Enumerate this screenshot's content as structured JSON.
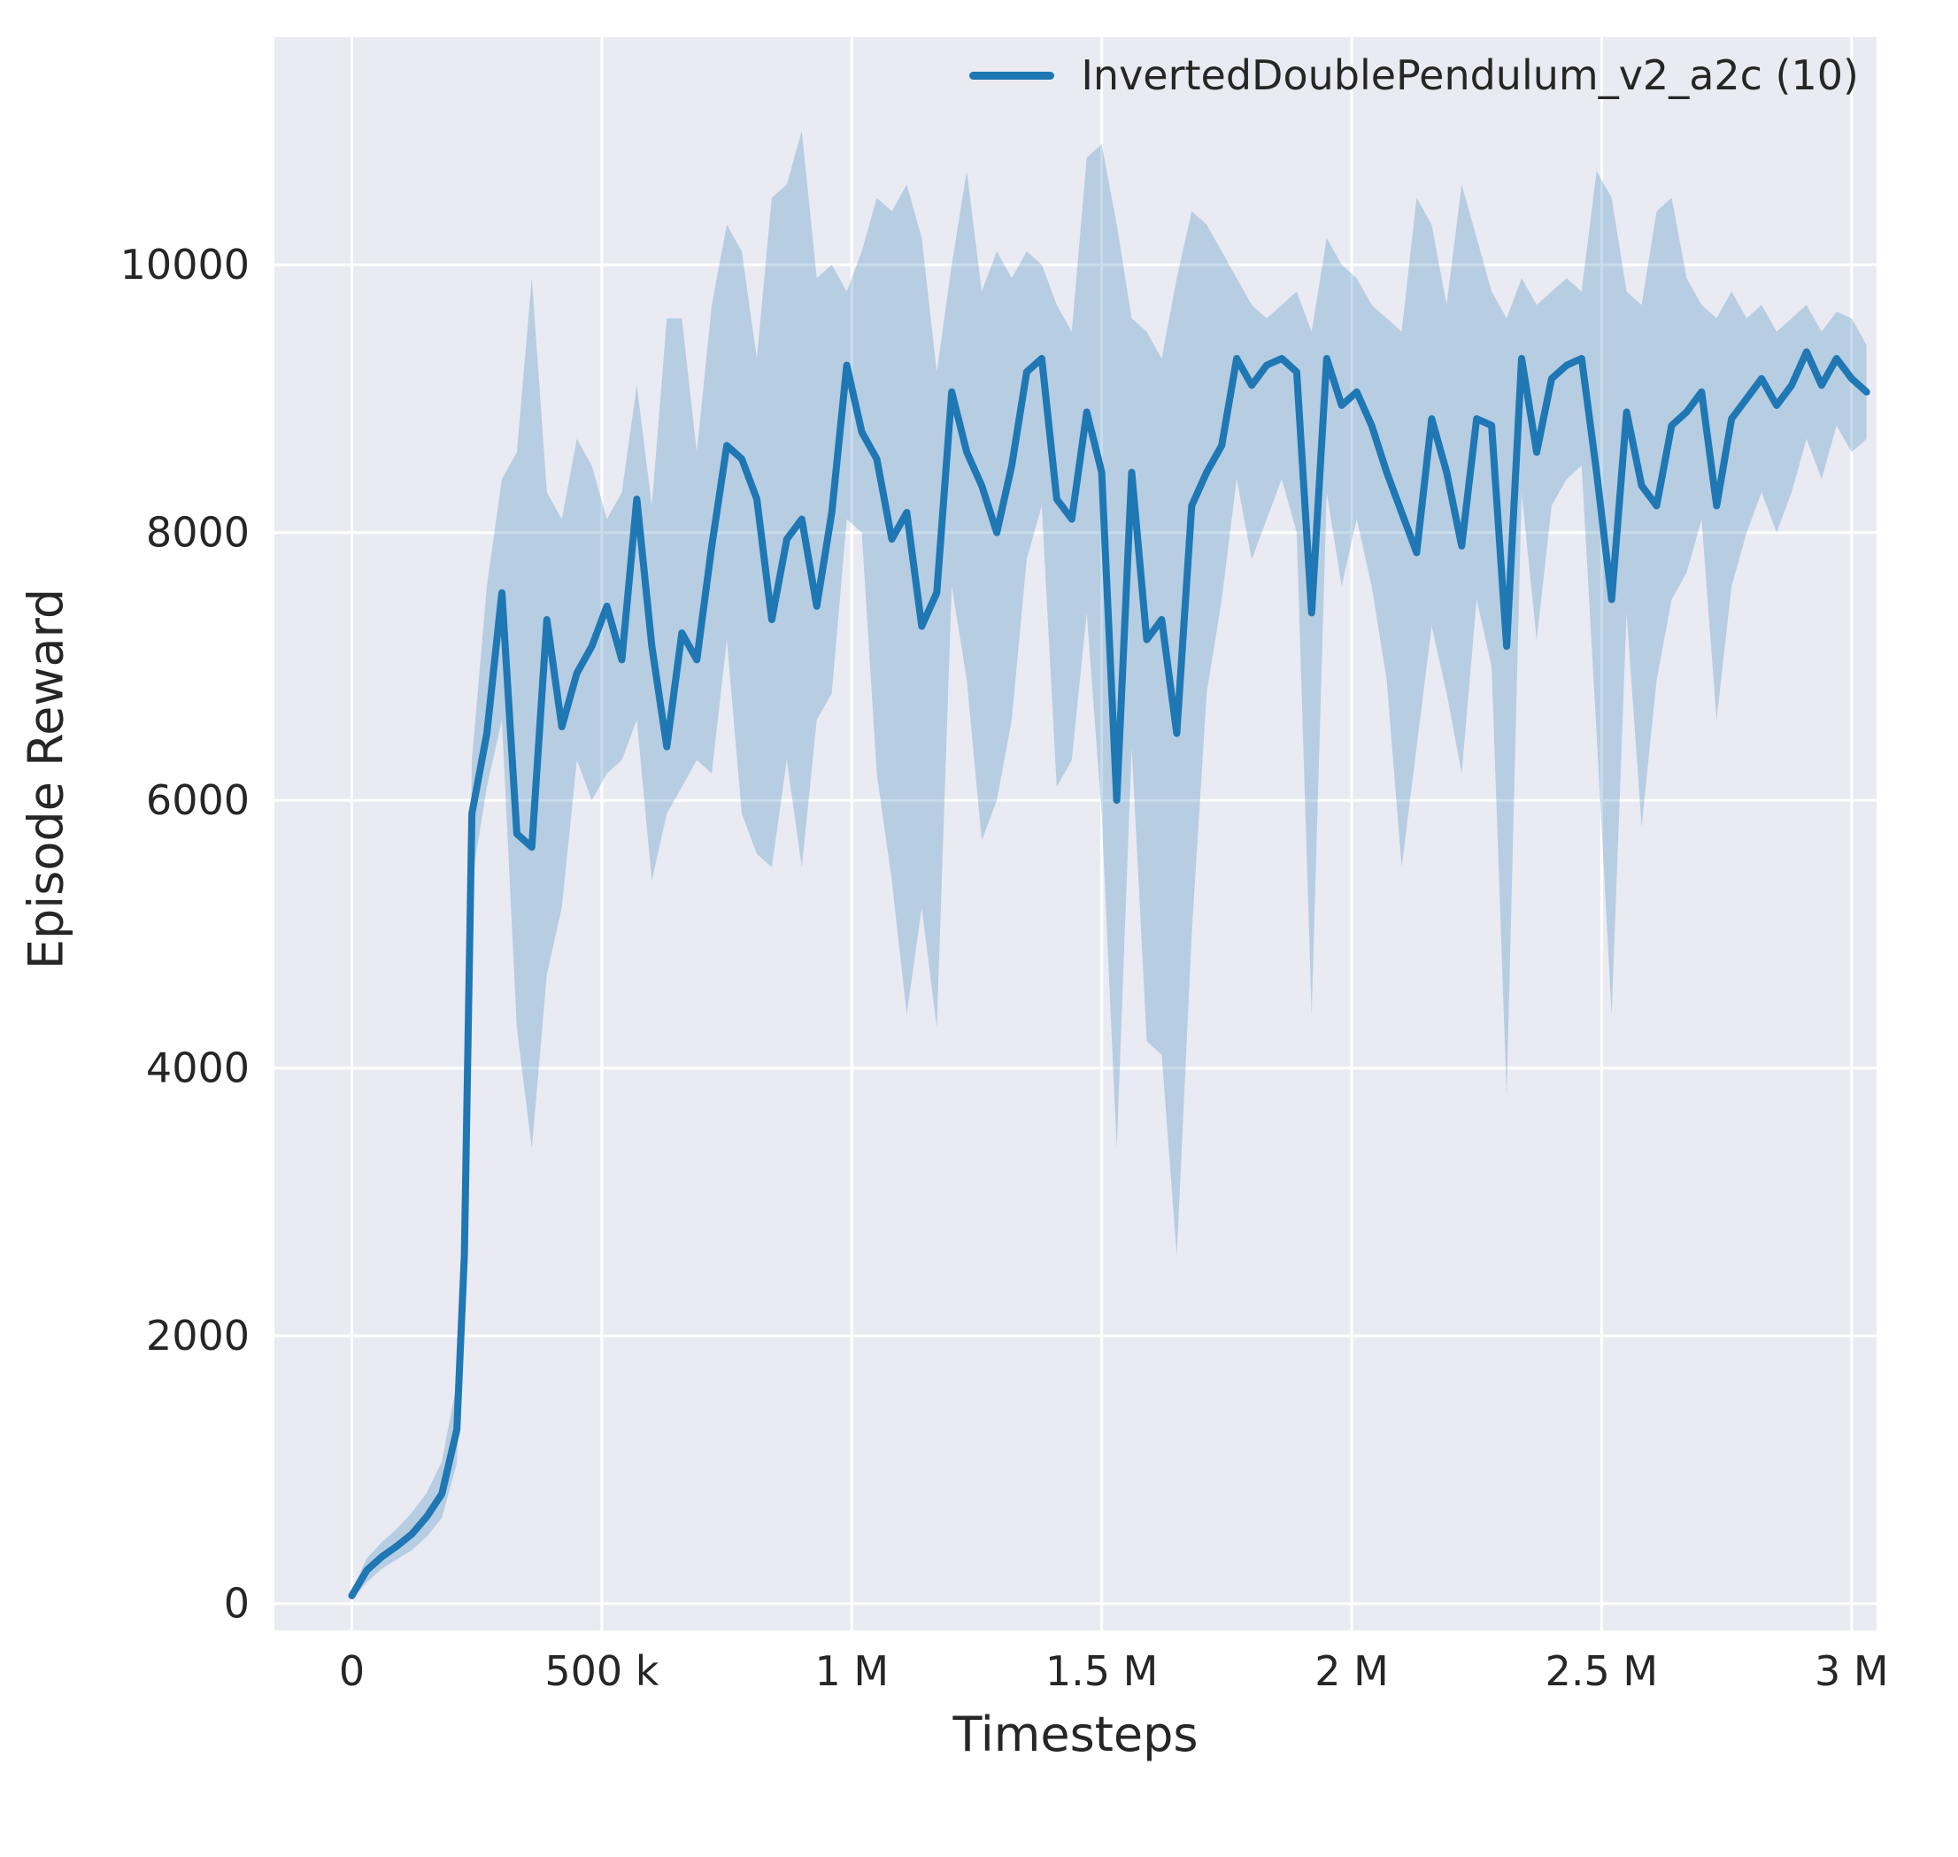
{
  "chart": {
    "legend_label": "InvertedDoublePendulum_v2_a2c (10)",
    "xlabel": "Timesteps",
    "ylabel": "Episode Reward"
  },
  "chart_data": {
    "type": "line",
    "title": "",
    "xlabel": "Timesteps",
    "ylabel": "Episode Reward",
    "legend_entries": [
      "InvertedDoublePendulum_v2_a2c (10)"
    ],
    "legend_position": "upper right",
    "grid": true,
    "style": {
      "background": "#eaeaf2",
      "grid_color": "#ffffff",
      "line_color": "#1f77b4",
      "band_color": "#1f77b4",
      "band_opacity": 0.25,
      "text_color": "#262626",
      "line_width": 8
    },
    "xlim": [
      -155000,
      3050000
    ],
    "ylim": [
      -200,
      11700
    ],
    "xticks": [
      {
        "v": 0,
        "label": "0"
      },
      {
        "v": 500000,
        "label": "500 k"
      },
      {
        "v": 1000000,
        "label": "1 M"
      },
      {
        "v": 1500000,
        "label": "1.5 M"
      },
      {
        "v": 2000000,
        "label": "2 M"
      },
      {
        "v": 2500000,
        "label": "2.5 M"
      },
      {
        "v": 3000000,
        "label": "3 M"
      }
    ],
    "yticks": [
      {
        "v": 0,
        "label": "0"
      },
      {
        "v": 2000,
        "label": "2000"
      },
      {
        "v": 4000,
        "label": "4000"
      },
      {
        "v": 6000,
        "label": "6000"
      },
      {
        "v": 8000,
        "label": "8000"
      },
      {
        "v": 10000,
        "label": "10000"
      }
    ],
    "series": [
      {
        "name": "InvertedDoublePendulum_v2_a2c (10)",
        "x": [
          0,
          30000,
          60000,
          90000,
          120000,
          150000,
          180000,
          210000,
          225000,
          240000,
          270000,
          300000,
          330000,
          360000,
          390000,
          420000,
          450000,
          480000,
          510000,
          540000,
          570000,
          600000,
          630000,
          660000,
          690000,
          720000,
          750000,
          780000,
          810000,
          840000,
          870000,
          900000,
          930000,
          960000,
          990000,
          1020000,
          1050000,
          1080000,
          1110000,
          1140000,
          1170000,
          1200000,
          1230000,
          1260000,
          1290000,
          1320000,
          1350000,
          1380000,
          1410000,
          1440000,
          1470000,
          1500000,
          1530000,
          1560000,
          1590000,
          1620000,
          1650000,
          1680000,
          1710000,
          1740000,
          1770000,
          1800000,
          1830000,
          1860000,
          1890000,
          1920000,
          1950000,
          1980000,
          2010000,
          2040000,
          2070000,
          2100000,
          2130000,
          2160000,
          2190000,
          2220000,
          2250000,
          2280000,
          2310000,
          2340000,
          2370000,
          2400000,
          2430000,
          2460000,
          2490000,
          2520000,
          2550000,
          2580000,
          2610000,
          2640000,
          2670000,
          2700000,
          2730000,
          2760000,
          2790000,
          2820000,
          2850000,
          2880000,
          2910000,
          2940000,
          2970000,
          3000000,
          3030000
        ],
        "mean": [
          60,
          250,
          350,
          430,
          520,
          650,
          820,
          1300,
          2600,
          5900,
          6500,
          7550,
          5750,
          5650,
          7350,
          6550,
          6950,
          7150,
          7450,
          7050,
          8250,
          7150,
          6400,
          7250,
          7050,
          7900,
          8650,
          8550,
          8250,
          7350,
          7950,
          8100,
          7450,
          8150,
          9250,
          8750,
          8550,
          7950,
          8150,
          7300,
          7550,
          9050,
          8600,
          8350,
          8000,
          8500,
          9200,
          9300,
          8250,
          8100,
          8900,
          8450,
          6000,
          8450,
          7200,
          7350,
          6500,
          8200,
          8450,
          8650,
          9300,
          9100,
          9250,
          9300,
          9200,
          7400,
          9300,
          8950,
          9050,
          8800,
          8450,
          8150,
          7850,
          8850,
          8450,
          7900,
          8850,
          8800,
          7150,
          9300,
          8600,
          9150,
          9250,
          9300,
          8450,
          7500,
          8900,
          8350,
          8200,
          8800,
          8900,
          9050,
          8200,
          8850,
          9000,
          9150,
          8950,
          9100,
          9350,
          9100,
          9300,
          9150,
          9050
        ],
        "lower": [
          30,
          160,
          260,
          330,
          400,
          500,
          640,
          1050,
          2200,
          5400,
          6100,
          6600,
          4300,
          3400,
          4700,
          5200,
          6300,
          6000,
          6200,
          6300,
          6600,
          5400,
          5900,
          6100,
          6300,
          6200,
          7200,
          5900,
          5600,
          5500,
          6300,
          5500,
          6600,
          6800,
          8100,
          8000,
          6200,
          5400,
          4400,
          5200,
          4300,
          7600,
          6900,
          5700,
          6000,
          6600,
          7800,
          8200,
          6100,
          6300,
          7400,
          5900,
          3400,
          6400,
          4200,
          4100,
          2600,
          5000,
          6800,
          7500,
          8400,
          7800,
          8100,
          8400,
          8000,
          4400,
          8300,
          7600,
          8100,
          7600,
          6900,
          5500,
          6400,
          7300,
          6800,
          6200,
          7500,
          7000,
          3800,
          8300,
          7200,
          8200,
          8400,
          8500,
          6500,
          4400,
          7400,
          5800,
          6900,
          7500,
          7700,
          8100,
          6600,
          7600,
          8000,
          8300,
          8000,
          8300,
          8700,
          8400,
          8800,
          8600,
          8700
        ],
        "upper": [
          100,
          340,
          460,
          560,
          680,
          830,
          1060,
          1650,
          3100,
          6300,
          7600,
          8400,
          8600,
          9900,
          8300,
          8100,
          8700,
          8500,
          8100,
          8300,
          9100,
          8200,
          9600,
          9600,
          8600,
          9700,
          10300,
          10100,
          9300,
          10500,
          10600,
          11000,
          9900,
          10000,
          9800,
          10100,
          10500,
          10400,
          10600,
          10200,
          9200,
          10000,
          10700,
          9800,
          10100,
          9900,
          10100,
          10000,
          9700,
          9500,
          10800,
          10900,
          10300,
          9600,
          9500,
          9300,
          9900,
          10400,
          10300,
          10100,
          9900,
          9700,
          9600,
          9700,
          9800,
          9500,
          10200,
          10000,
          9900,
          9700,
          9600,
          9500,
          10500,
          10300,
          9700,
          10600,
          10200,
          9800,
          9600,
          9900,
          9700,
          9800,
          9900,
          9800,
          10700,
          10500,
          9800,
          9700,
          10400,
          10500,
          9900,
          9700,
          9600,
          9800,
          9600,
          9700,
          9500,
          9600,
          9700,
          9500,
          9650,
          9600,
          9400
        ]
      }
    ]
  }
}
